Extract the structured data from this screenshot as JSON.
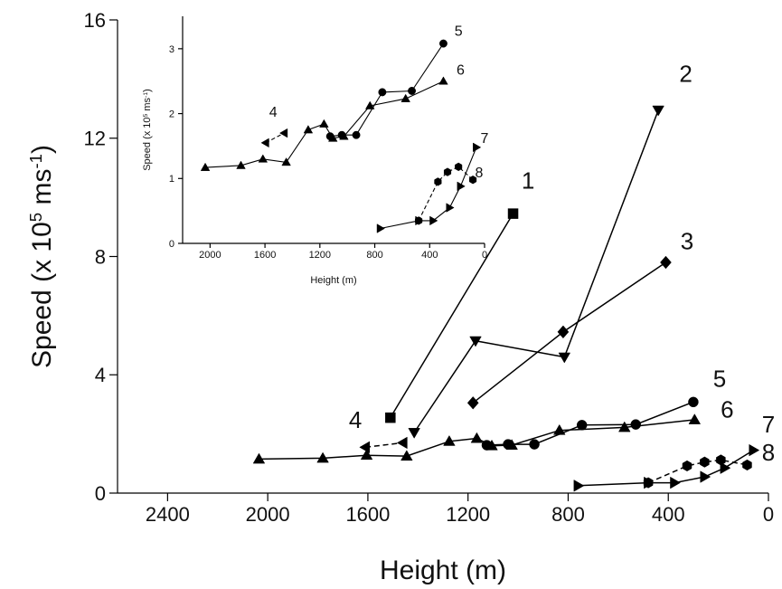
{
  "chart_data": [
    {
      "id": "main",
      "type": "line",
      "xlabel": "Height (m)",
      "ylabel_parts": [
        "Speed (x 10",
        "5",
        " ms",
        "-1",
        ")"
      ],
      "xlim": [
        2600,
        0
      ],
      "ylim": [
        0,
        16
      ],
      "xticks": [
        2400,
        2000,
        1600,
        1200,
        800,
        400,
        0
      ],
      "yticks": [
        0,
        4,
        8,
        12,
        16
      ],
      "grid": false,
      "series": [
        {
          "label": "1",
          "marker": "square",
          "dashed": false,
          "points": [
            [
              1510,
              2.55
            ],
            [
              1020,
              9.45
            ]
          ]
        },
        {
          "label": "2",
          "marker": "triangle-down",
          "dashed": false,
          "points": [
            [
              1415,
              2.05
            ],
            [
              1170,
              5.15
            ],
            [
              815,
              4.6
            ],
            [
              440,
              12.95
            ]
          ]
        },
        {
          "label": "3",
          "marker": "diamond",
          "dashed": false,
          "points": [
            [
              1180,
              3.05
            ],
            [
              820,
              5.45
            ],
            [
              410,
              7.8
            ]
          ]
        },
        {
          "label": "4",
          "marker": "triangle-left",
          "dashed": true,
          "points": [
            [
              1610,
              1.55
            ],
            [
              1460,
              1.7
            ]
          ]
        },
        {
          "label": "5",
          "marker": "circle",
          "dashed": false,
          "points": [
            [
              1125,
              1.62
            ],
            [
              1040,
              1.65
            ],
            [
              935,
              1.65
            ],
            [
              745,
              2.3
            ],
            [
              530,
              2.32
            ],
            [
              300,
              3.08
            ]
          ]
        },
        {
          "label": "6",
          "marker": "triangle-up",
          "dashed": false,
          "points": [
            [
              2035,
              1.15
            ],
            [
              1780,
              1.18
            ],
            [
              1605,
              1.28
            ],
            [
              1445,
              1.25
            ],
            [
              1275,
              1.75
            ],
            [
              1165,
              1.85
            ],
            [
              1105,
              1.6
            ],
            [
              1025,
              1.62
            ],
            [
              835,
              2.12
            ],
            [
              575,
              2.22
            ],
            [
              295,
              2.48
            ]
          ]
        },
        {
          "label": "7",
          "marker": "triangle-right",
          "dashed": false,
          "points": [
            [
              760,
              0.25
            ],
            [
              480,
              0.35
            ],
            [
              375,
              0.35
            ],
            [
              255,
              0.55
            ],
            [
              175,
              0.85
            ],
            [
              60,
              1.45
            ]
          ]
        },
        {
          "label": "8",
          "marker": "hexagon",
          "dashed": true,
          "points": [
            [
              480,
              0.35
            ],
            [
              325,
              0.92
            ],
            [
              255,
              1.05
            ],
            [
              190,
              1.12
            ],
            [
              85,
              0.95
            ]
          ]
        }
      ],
      "annotations": [
        {
          "text": "1",
          "x": 960,
          "y": 10.3
        },
        {
          "text": "2",
          "x": 330,
          "y": 13.9
        },
        {
          "text": "3",
          "x": 325,
          "y": 8.25
        },
        {
          "text": "4",
          "x": 1650,
          "y": 2.2
        },
        {
          "text": "5",
          "x": 195,
          "y": 3.6
        },
        {
          "text": "6",
          "x": 165,
          "y": 2.55
        },
        {
          "text": "7",
          "x": 0,
          "y": 2.05
        },
        {
          "text": "8",
          "x": 0,
          "y": 1.1
        }
      ]
    },
    {
      "id": "inset",
      "type": "line",
      "xlabel": "Height (m)",
      "ylabel_parts": [
        "Speed (x 10",
        "5",
        " ms",
        "-1",
        ")"
      ],
      "xlim": [
        2200,
        0
      ],
      "ylim": [
        0,
        3.5
      ],
      "xticks": [
        2000,
        1600,
        1200,
        800,
        400,
        0
      ],
      "yticks": [
        0,
        1,
        2,
        3
      ],
      "grid": false,
      "series": [
        {
          "label": "4",
          "marker": "triangle-left",
          "dashed": true,
          "points": [
            [
              1595,
              1.55
            ],
            [
              1460,
              1.7
            ]
          ]
        },
        {
          "label": "5",
          "marker": "circle",
          "dashed": false,
          "points": [
            [
              1125,
              1.65
            ],
            [
              1040,
              1.67
            ],
            [
              935,
              1.67
            ],
            [
              745,
              2.33
            ],
            [
              530,
              2.35
            ],
            [
              300,
              3.08
            ]
          ]
        },
        {
          "label": "6",
          "marker": "triangle-up",
          "dashed": false,
          "points": [
            [
              2035,
              1.17
            ],
            [
              1775,
              1.2
            ],
            [
              1615,
              1.3
            ],
            [
              1445,
              1.25
            ],
            [
              1285,
              1.75
            ],
            [
              1170,
              1.84
            ],
            [
              1105,
              1.62
            ],
            [
              1025,
              1.65
            ],
            [
              835,
              2.12
            ],
            [
              575,
              2.23
            ],
            [
              300,
              2.5
            ]
          ]
        },
        {
          "label": "7",
          "marker": "triangle-right",
          "dashed": false,
          "points": [
            [
              760,
              0.23
            ],
            [
              480,
              0.35
            ],
            [
              375,
              0.35
            ],
            [
              255,
              0.55
            ],
            [
              175,
              0.88
            ],
            [
              60,
              1.48
            ]
          ]
        },
        {
          "label": "8",
          "marker": "hexagon",
          "dashed": true,
          "points": [
            [
              480,
              0.35
            ],
            [
              340,
              0.95
            ],
            [
              270,
              1.1
            ],
            [
              190,
              1.18
            ],
            [
              85,
              0.98
            ]
          ]
        }
      ],
      "annotations": [
        {
          "text": "4",
          "x": 1540,
          "y": 1.95
        },
        {
          "text": "5",
          "x": 190,
          "y": 3.2
        },
        {
          "text": "6",
          "x": 175,
          "y": 2.6
        },
        {
          "text": "7",
          "x": 0,
          "y": 1.55
        },
        {
          "text": "8",
          "x": 40,
          "y": 1.02
        }
      ]
    }
  ]
}
